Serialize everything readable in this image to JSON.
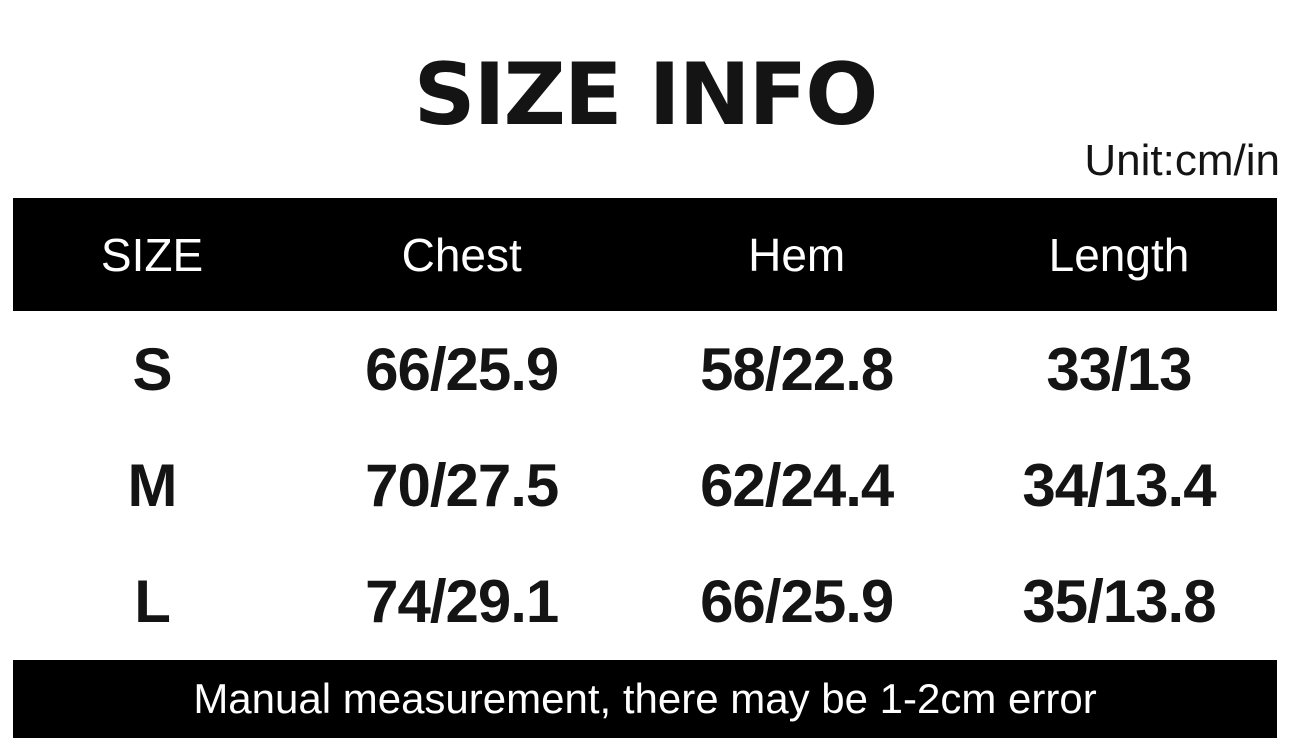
{
  "chart_data": {
    "type": "table",
    "title": "SIZE INFO",
    "unit_label": "Unit:cm/in",
    "columns": [
      "SIZE",
      "Chest",
      "Hem",
      "Length"
    ],
    "rows": [
      [
        "S",
        "66/25.9",
        "58/22.8",
        "33/13"
      ],
      [
        "M",
        "70/27.5",
        "62/24.4",
        "34/13.4"
      ],
      [
        "L",
        "74/29.1",
        "66/25.9",
        "35/13.8"
      ]
    ],
    "footer_note": "Manual measurement, there may be 1-2cm error"
  },
  "colors": {
    "bar_background": "#000000",
    "bar_text": "#ffffff",
    "text": "#141414",
    "page_background": "#ffffff"
  }
}
